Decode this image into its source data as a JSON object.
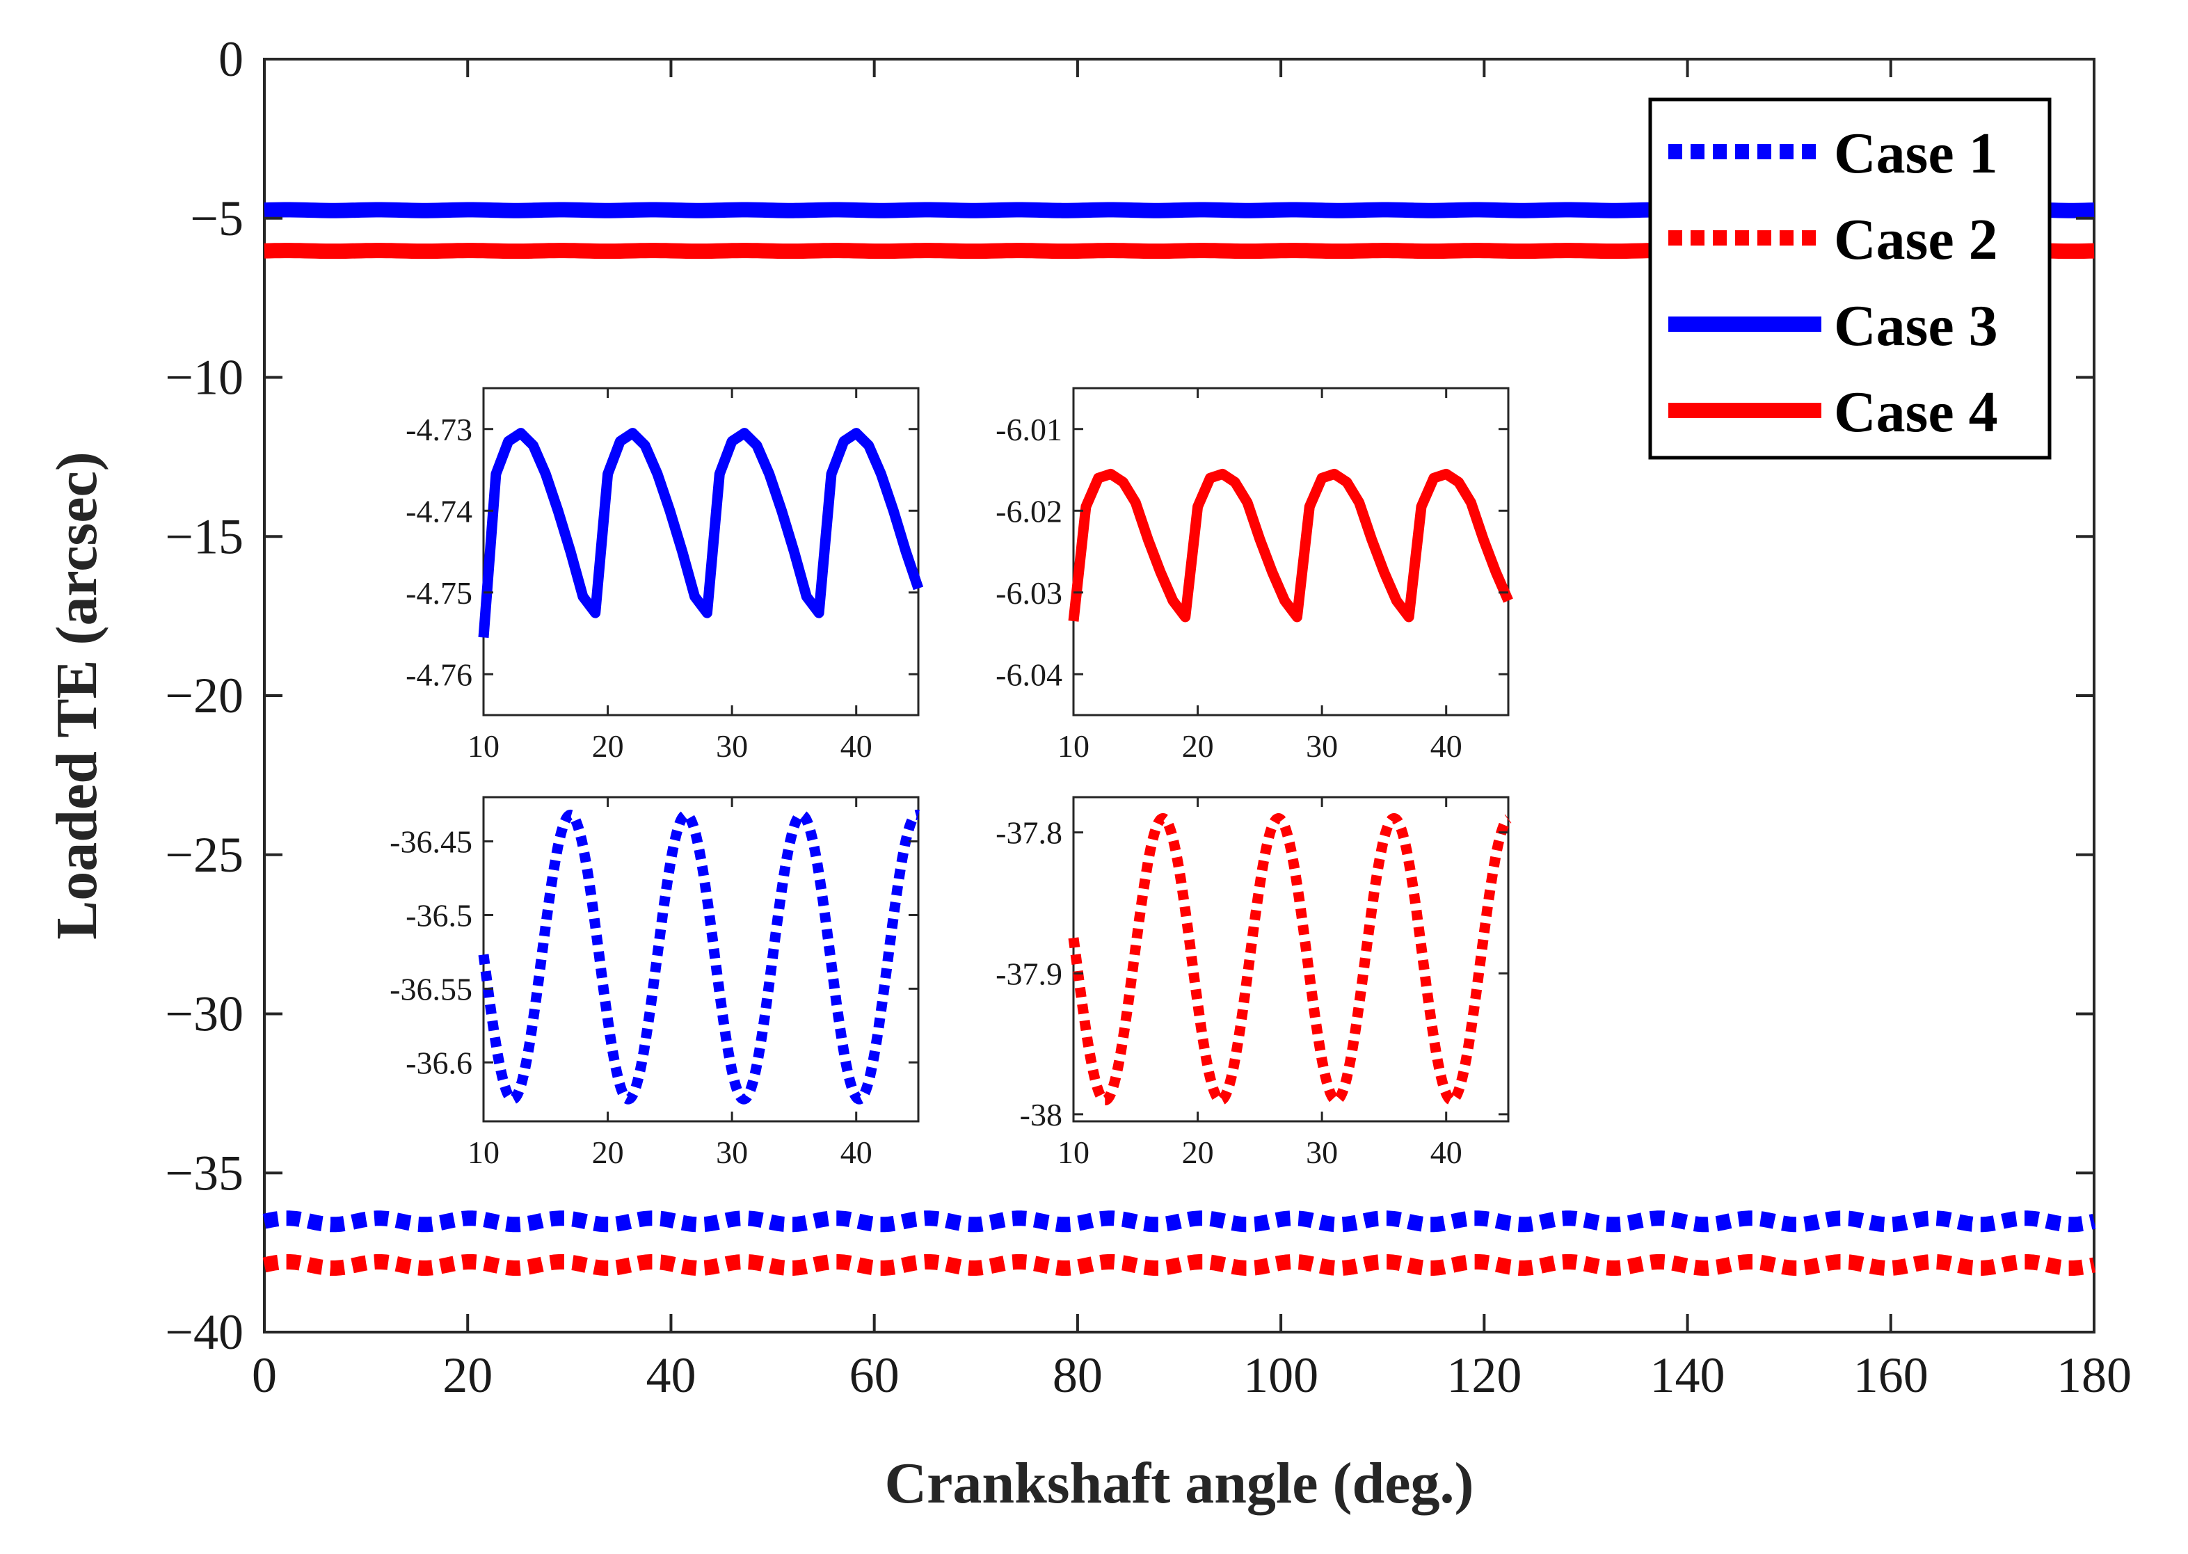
{
  "chart_data": [
    {
      "id": "main",
      "type": "line",
      "xlabel": "Crankshaft angle (deg.)",
      "ylabel": "Loaded TE (arcsec)",
      "xlim": [
        0,
        180
      ],
      "ylim": [
        -40,
        0
      ],
      "xticks": [
        0,
        20,
        40,
        60,
        80,
        100,
        120,
        140,
        160,
        180
      ],
      "yticks": [
        0,
        -5,
        -10,
        -15,
        -20,
        -25,
        -30,
        -35,
        -40
      ],
      "xtick_labels": [
        "0",
        "20",
        "40",
        "60",
        "80",
        "100",
        "120",
        "140",
        "160",
        "180"
      ],
      "ytick_labels": [
        "0",
        "−5",
        "−10",
        "−15",
        "−20",
        "−25",
        "−30",
        "−35",
        "−40"
      ],
      "legend": {
        "position": "top-right",
        "entries": [
          "Case 1",
          "Case 2",
          "Case 3",
          "Case 4"
        ]
      },
      "series": [
        {
          "name": "Case 1",
          "color": "#0000ff",
          "style": "dotted",
          "mean": -36.52,
          "amplitude": 0.1,
          "period": 9
        },
        {
          "name": "Case 2",
          "color": "#ff0000",
          "style": "dotted",
          "mean": -37.89,
          "amplitude": 0.1,
          "period": 9
        },
        {
          "name": "Case 3",
          "color": "#0000ff",
          "style": "solid",
          "mean": -4.745,
          "amplitude": 0.013,
          "period": 9
        },
        {
          "name": "Case 4",
          "color": "#ff0000",
          "style": "solid",
          "mean": -6.025,
          "amplitude": 0.011,
          "period": 9
        }
      ]
    },
    {
      "id": "inset-case3",
      "type": "line",
      "series_name": "Case 3",
      "color": "#0000ff",
      "style": "solid",
      "xlim": [
        10,
        45
      ],
      "ylim": [
        -4.765,
        -4.725
      ],
      "xticks": [
        10,
        20,
        30,
        40
      ],
      "yticks": [
        -4.73,
        -4.74,
        -4.75,
        -4.76
      ],
      "xtick_labels": [
        "10",
        "20",
        "30",
        "40"
      ],
      "ytick_labels": [
        "-4.73",
        "-4.74",
        "-4.75",
        "-4.76"
      ],
      "x": [
        10,
        11,
        12,
        13,
        14,
        15,
        16,
        17,
        18,
        19,
        20,
        21,
        22,
        23,
        24,
        25,
        26,
        27,
        28,
        29,
        30,
        31,
        32,
        33,
        34,
        35,
        36,
        37,
        38,
        39,
        40,
        41,
        42,
        43,
        44,
        45
      ],
      "values": [
        -4.7555,
        -4.7355,
        -4.7315,
        -4.7305,
        -4.732,
        -4.7355,
        -4.74,
        -4.745,
        -4.7505,
        -4.7525,
        -4.7355,
        -4.7315,
        -4.7305,
        -4.732,
        -4.7355,
        -4.74,
        -4.745,
        -4.7505,
        -4.7525,
        -4.7355,
        -4.7315,
        -4.7305,
        -4.732,
        -4.7355,
        -4.74,
        -4.745,
        -4.7505,
        -4.7525,
        -4.7355,
        -4.7315,
        -4.7305,
        -4.732,
        -4.7355,
        -4.74,
        -4.745,
        -4.7495
      ]
    },
    {
      "id": "inset-case4",
      "type": "line",
      "series_name": "Case 4",
      "color": "#ff0000",
      "style": "solid",
      "xlim": [
        10,
        45
      ],
      "ylim": [
        -6.045,
        -6.005
      ],
      "xticks": [
        10,
        20,
        30,
        40
      ],
      "yticks": [
        -6.01,
        -6.02,
        -6.03,
        -6.04
      ],
      "xtick_labels": [
        "10",
        "20",
        "30",
        "40"
      ],
      "ytick_labels": [
        "-6.01",
        "-6.02",
        "-6.03",
        "-6.04"
      ],
      "x": [
        10,
        11,
        12,
        13,
        14,
        15,
        16,
        17,
        18,
        19,
        20,
        21,
        22,
        23,
        24,
        25,
        26,
        27,
        28,
        29,
        30,
        31,
        32,
        33,
        34,
        35,
        36,
        37,
        38,
        39,
        40,
        41,
        42,
        43,
        44,
        45
      ],
      "values": [
        -6.0335,
        -6.0195,
        -6.016,
        -6.0155,
        -6.0165,
        -6.019,
        -6.0235,
        -6.0275,
        -6.031,
        -6.033,
        -6.0195,
        -6.016,
        -6.0155,
        -6.0165,
        -6.019,
        -6.0235,
        -6.0275,
        -6.031,
        -6.033,
        -6.0195,
        -6.016,
        -6.0155,
        -6.0165,
        -6.019,
        -6.0235,
        -6.0275,
        -6.031,
        -6.033,
        -6.0195,
        -6.016,
        -6.0155,
        -6.0165,
        -6.019,
        -6.0235,
        -6.0275,
        -6.031
      ]
    },
    {
      "id": "inset-case1",
      "type": "line",
      "series_name": "Case 1",
      "color": "#0000ff",
      "style": "dotted",
      "xlim": [
        10,
        45
      ],
      "ylim": [
        -36.64,
        -36.42
      ],
      "xticks": [
        10,
        20,
        30,
        40
      ],
      "yticks": [
        -36.45,
        -36.5,
        -36.55,
        -36.6
      ],
      "xtick_labels": [
        "10",
        "20",
        "30",
        "40"
      ],
      "ytick_labels": [
        "-36.45",
        "-36.5",
        "-36.55",
        "-36.6"
      ],
      "period": 9.3,
      "max": -36.432,
      "min": -36.625,
      "first_peak_x": 17.0
    },
    {
      "id": "inset-case2",
      "type": "line",
      "series_name": "Case 2",
      "color": "#ff0000",
      "style": "dotted",
      "xlim": [
        10,
        45
      ],
      "ylim": [
        -38.005,
        -37.775
      ],
      "xticks": [
        10,
        20,
        30,
        40
      ],
      "yticks": [
        -37.8,
        -37.9,
        -38
      ],
      "xtick_labels": [
        "10",
        "20",
        "30",
        "40"
      ],
      "ytick_labels": [
        "-37.8",
        "-37.9",
        "-38"
      ],
      "period": 9.3,
      "max": -37.79,
      "min": -37.99,
      "first_peak_x": 17.2
    }
  ]
}
